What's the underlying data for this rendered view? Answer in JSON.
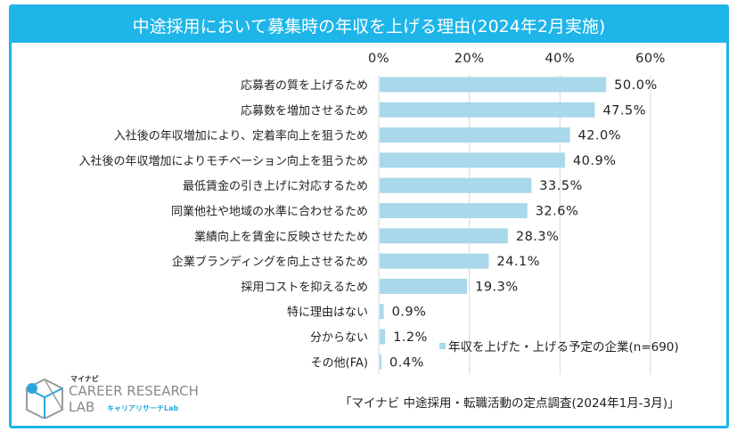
{
  "header": {
    "title": "中途採用において募集時の年収を上げる理由(2024年2月実施)"
  },
  "chart_data": {
    "type": "bar",
    "orientation": "horizontal",
    "title": "中途採用において募集時の年収を上げる理由(2024年2月実施)",
    "xlabel": "",
    "ylabel": "",
    "xlim": [
      0,
      60
    ],
    "x_ticks": [
      0,
      20,
      40,
      60
    ],
    "x_tick_labels": [
      "0%",
      "20%",
      "40%",
      "60%"
    ],
    "x_axis_position": "top",
    "grid": true,
    "bar_color": "#a8d8ea",
    "categories": [
      "応募者の質を上げるため",
      "応募数を増加させるため",
      "入社後の年収増加により、定着率向上を狙うため",
      "入社後の年収増加によりモチベーション向上を狙うため",
      "最低賃金の引き上げに対応するため",
      "同業他社や地域の水準に合わせるため",
      "業績向上を賃金に反映させたため",
      "企業ブランディングを向上させるため",
      "採用コストを抑えるため",
      "特に理由はない",
      "分からない",
      "その他(FA)"
    ],
    "series": [
      {
        "name": "年収を上げた・上げる予定の企業(n=690)",
        "values": [
          50.0,
          47.5,
          42.0,
          40.9,
          33.5,
          32.6,
          28.3,
          24.1,
          19.3,
          0.9,
          1.2,
          0.4
        ],
        "value_labels": [
          "50.0%",
          "47.5%",
          "42.0%",
          "40.9%",
          "33.5%",
          "32.6%",
          "28.3%",
          "24.1%",
          "19.3%",
          "0.9%",
          "1.2%",
          "0.4%"
        ]
      }
    ],
    "legend": {
      "label": "年収を上げた・上げる予定の企業(n=690)",
      "placement": "bottom-right"
    }
  },
  "footer": {
    "source": "「マイナビ 中途採用・転職活動の定点調査(2024年1月-3月)」",
    "logo": {
      "brand": "マイナビ",
      "line1": "CAREER RESEARCH",
      "line2": "LAB",
      "sub": "キャリアリサーチLab",
      "icon": "cube-logo-icon"
    }
  },
  "colors": {
    "accent": "#1eb5e8",
    "bar": "#a8d8ea",
    "grid": "#d9d9d9"
  }
}
